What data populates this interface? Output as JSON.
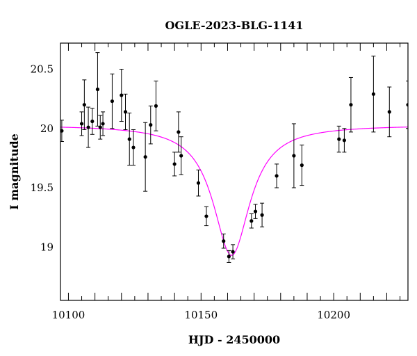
{
  "chart_data": {
    "type": "scatter",
    "title": "OGLE-2023-BLG-1141",
    "xlabel": "HJD - 2450000",
    "ylabel": "I magnitude",
    "xlim": [
      10097,
      10228
    ],
    "ylim": [
      20.72,
      18.55
    ],
    "y_inverted": true,
    "grid": false,
    "xticks": [
      10100,
      10150,
      10200
    ],
    "xtick_labels": [
      "10100",
      "10150",
      "10200"
    ],
    "yticks": [
      19,
      19.5,
      20,
      20.5
    ],
    "ytick_labels": [
      "19",
      "19.5",
      "20",
      "20.5"
    ],
    "colors": {
      "points": "#000000",
      "model": "#ff00ff",
      "frame": "#000000"
    },
    "series": [
      {
        "kind": "points_with_errorbars",
        "points": [
          {
            "x": 10097.5,
            "y": 19.98,
            "err": 0.09
          },
          {
            "x": 10105,
            "y": 20.04,
            "err": 0.1
          },
          {
            "x": 10106,
            "y": 20.2,
            "err": 0.21
          },
          {
            "x": 10107.5,
            "y": 20.01,
            "err": 0.17
          },
          {
            "x": 10109,
            "y": 20.06,
            "err": 0.11
          },
          {
            "x": 10111,
            "y": 20.33,
            "err": 0.31
          },
          {
            "x": 10112,
            "y": 20.01,
            "err": 0.1
          },
          {
            "x": 10113,
            "y": 20.04,
            "err": 0.1
          },
          {
            "x": 10116.5,
            "y": 20.23,
            "err": 0.23
          },
          {
            "x": 10120,
            "y": 20.28,
            "err": 0.22
          },
          {
            "x": 10121.5,
            "y": 20.14,
            "err": 0.15
          },
          {
            "x": 10123,
            "y": 19.91,
            "err": 0.22
          },
          {
            "x": 10124.5,
            "y": 19.84,
            "err": 0.15
          },
          {
            "x": 10129,
            "y": 19.76,
            "err": 0.29
          },
          {
            "x": 10131,
            "y": 20.03,
            "err": 0.16
          },
          {
            "x": 10133,
            "y": 20.19,
            "err": 0.21
          },
          {
            "x": 10140,
            "y": 19.7,
            "err": 0.1
          },
          {
            "x": 10141.5,
            "y": 19.97,
            "err": 0.17
          },
          {
            "x": 10142.5,
            "y": 19.77,
            "err": 0.16
          },
          {
            "x": 10149,
            "y": 19.54,
            "err": 0.11
          },
          {
            "x": 10152,
            "y": 19.26,
            "err": 0.08
          },
          {
            "x": 10158.5,
            "y": 19.05,
            "err": 0.06
          },
          {
            "x": 10160.5,
            "y": 18.92,
            "err": 0.05
          },
          {
            "x": 10162,
            "y": 18.96,
            "err": 0.06
          },
          {
            "x": 10169,
            "y": 19.22,
            "err": 0.06
          },
          {
            "x": 10170.5,
            "y": 19.3,
            "err": 0.06
          },
          {
            "x": 10173,
            "y": 19.27,
            "err": 0.1
          },
          {
            "x": 10178.5,
            "y": 19.6,
            "err": 0.1
          },
          {
            "x": 10185,
            "y": 19.77,
            "err": 0.27
          },
          {
            "x": 10188,
            "y": 19.69,
            "err": 0.17
          },
          {
            "x": 10202,
            "y": 19.91,
            "err": 0.11
          },
          {
            "x": 10204,
            "y": 19.9,
            "err": 0.1
          },
          {
            "x": 10206.5,
            "y": 20.2,
            "err": 0.23
          },
          {
            "x": 10215,
            "y": 20.29,
            "err": 0.32
          },
          {
            "x": 10221,
            "y": 20.14,
            "err": 0.21
          },
          {
            "x": 10228,
            "y": 20.2,
            "err": 0.2
          }
        ]
      },
      {
        "kind": "model_curve",
        "function": "lorentzian",
        "baseline_mag": 20.03,
        "peak_x": 10161.5,
        "peak_mag": 18.93,
        "width_days": 8.5
      }
    ]
  }
}
